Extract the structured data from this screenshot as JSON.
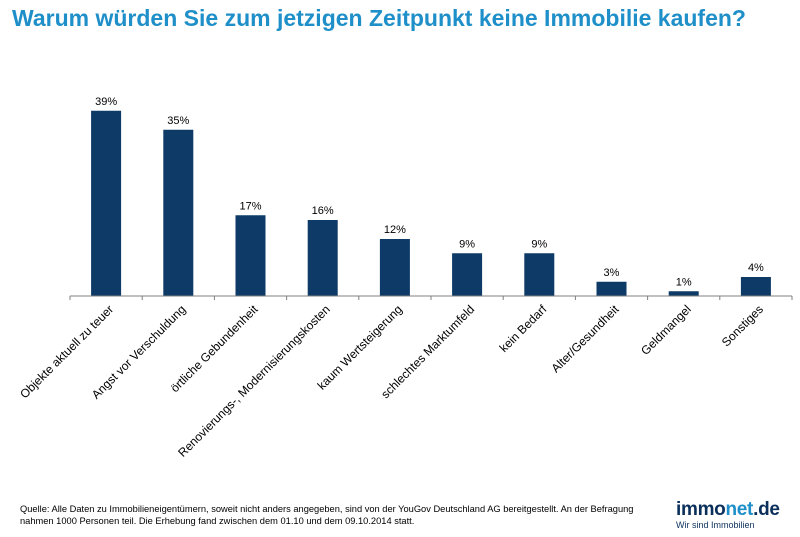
{
  "chart_data": {
    "type": "bar",
    "title": "Warum würden Sie zum jetzigen Zeitpunkt keine Immobilie kaufen?",
    "categories": [
      "Objekte aktuell zu teuer",
      "Angst vor Verschuldung",
      "örtliche Gebundenheit",
      "Renovierungs-, Modernisierungskosten",
      "kaum Wertsteigerung",
      "schlechtes Marktumfeld",
      "kein Bedarf",
      "Alter/Gesundheit",
      "Geldmangel",
      "Sonstiges"
    ],
    "values": [
      39,
      35,
      17,
      16,
      12,
      9,
      9,
      3,
      1,
      4
    ],
    "data_labels": [
      "39%",
      "35%",
      "17%",
      "16%",
      "12%",
      "9%",
      "9%",
      "3%",
      "1%",
      "4%"
    ],
    "ylim": [
      0,
      40
    ],
    "grid": false,
    "legend": "none",
    "bar_color": "#0d3a66",
    "axis_color": "#808080"
  },
  "footnote": "Quelle: Alle Daten zu Immobilieneigentümern, soweit nicht anders angegeben, sind von der YouGov Deutschland AG bereitgestellt. An der Befragung nahmen 1000 Personen teil. Die Erhebung fand zwischen dem 01.10 und dem 09.10.2014 statt.",
  "logo": {
    "brand_part1": "immo",
    "brand_part2": "net",
    "brand_part3": ".de",
    "tagline": "Wir sind Immobilien"
  },
  "colors": {
    "title": "#1e8fc8",
    "logo_dark": "#0b2f5b",
    "logo_light": "#1e8fc8"
  }
}
